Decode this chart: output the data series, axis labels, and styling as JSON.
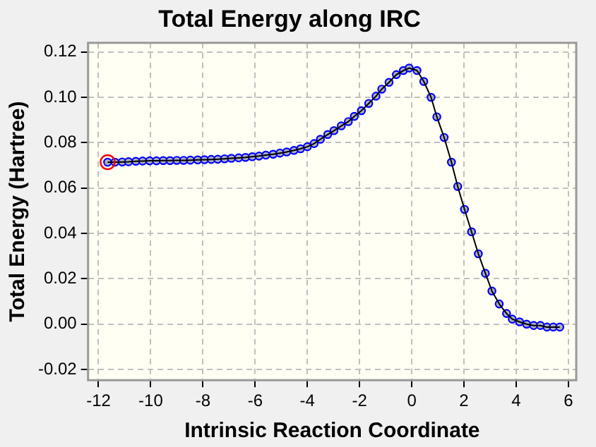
{
  "chart_data": {
    "type": "line",
    "title": "Total Energy along IRC",
    "xlabel": "Intrinsic Reaction Coordinate",
    "ylabel": "Total Energy (Hartree)",
    "xlim": [
      -12.4,
      6.3
    ],
    "xticks": [
      -12,
      -10,
      -8,
      -6,
      -4,
      -2,
      0,
      2,
      4,
      6
    ],
    "ylim": [
      -0.0247,
      0.124
    ],
    "yticks": [
      -0.02,
      {
        "value": 0,
        "label": "0.00"
      },
      0.02,
      0.04,
      0.06,
      0.08,
      {
        "value": 0.1,
        "label": "0.10"
      },
      0.12
    ],
    "grid": true,
    "legend": false,
    "marker": "circle",
    "line_style": "solid",
    "series": [
      {
        "color": "#0000ff",
        "x": [
          -11.65,
          -11.37,
          -11.09,
          -10.85,
          -10.57,
          -10.31,
          -10.04,
          -9.78,
          -9.52,
          -9.26,
          -9.0,
          -8.74,
          -8.48,
          -8.2,
          -7.94,
          -7.68,
          -7.43,
          -7.17,
          -6.91,
          -6.63,
          -6.37,
          -6.11,
          -5.85,
          -5.59,
          -5.31,
          -5.05,
          -4.79,
          -4.51,
          -4.26,
          -4.0,
          -3.74,
          -3.5,
          -3.22,
          -2.98,
          -2.7,
          -2.43,
          -2.2,
          -1.93,
          -1.65,
          -1.37,
          -1.15,
          -0.87,
          -0.59,
          -0.32,
          -0.1,
          0.2,
          0.46,
          0.74,
          0.96,
          1.24,
          1.52,
          1.76,
          2.02,
          2.29,
          2.55,
          2.82,
          3.07,
          3.35,
          3.63,
          3.85,
          4.13,
          4.4,
          4.67,
          4.93,
          5.18,
          5.42,
          5.67
        ],
        "values": [
          0.0714,
          0.0714,
          0.0715,
          0.0716,
          0.0718,
          0.0719,
          0.072,
          0.072,
          0.0721,
          0.0721,
          0.0722,
          0.0722,
          0.0723,
          0.0724,
          0.0725,
          0.0726,
          0.0727,
          0.0729,
          0.0731,
          0.0733,
          0.0735,
          0.0738,
          0.0741,
          0.0745,
          0.0749,
          0.0754,
          0.0759,
          0.0766,
          0.0773,
          0.0782,
          0.0796,
          0.0815,
          0.0836,
          0.0853,
          0.0874,
          0.0893,
          0.0916,
          0.0941,
          0.0973,
          0.1005,
          0.1036,
          0.1066,
          0.11,
          0.1118,
          0.1129,
          0.1118,
          0.107,
          0.1,
          0.0914,
          0.0823,
          0.0714,
          0.0607,
          0.0506,
          0.0407,
          0.031,
          0.0224,
          0.0146,
          0.0089,
          0.0047,
          0.0022,
          0.001,
          0.0,
          -0.0006,
          -0.0006,
          -0.0013,
          -0.0013,
          -0.0013
        ]
      },
      {
        "type": "scatter",
        "color": "#ff0000",
        "x": [
          -11.65
        ],
        "values": [
          0.0714
        ]
      }
    ]
  }
}
